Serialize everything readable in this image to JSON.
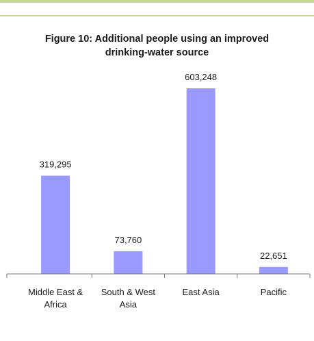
{
  "chart_data": {
    "type": "bar",
    "title_lines": [
      "Figure 10: Additional people using an improved",
      "drinking-water source"
    ],
    "categories": [
      [
        "Middle East &",
        "Africa"
      ],
      [
        "South & West",
        "Asia"
      ],
      [
        "East Asia"
      ],
      [
        "Pacific"
      ]
    ],
    "values": [
      319295,
      73760,
      603248,
      22651
    ],
    "value_labels": [
      "319,295",
      "73,760",
      "603,248",
      "22,651"
    ],
    "ylim": [
      0,
      650000
    ],
    "grid": false,
    "legend": "none",
    "bar_color": "#9999ff"
  }
}
